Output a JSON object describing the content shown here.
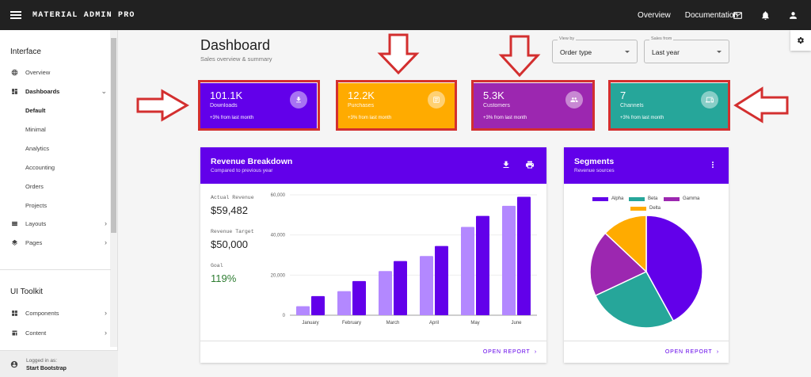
{
  "topbar": {
    "brand": "MATERIAL ADMIN PRO",
    "nav": [
      "Overview",
      "Documentation"
    ],
    "icons": [
      "mail-icon",
      "bell-icon",
      "account-icon"
    ]
  },
  "sidebar": {
    "interface_heading": "Interface",
    "overview": "Overview",
    "dashboards": "Dashboards",
    "dashboard_children": [
      "Default",
      "Minimal",
      "Analytics",
      "Accounting",
      "Orders",
      "Projects"
    ],
    "layouts": "Layouts",
    "pages": "Pages",
    "toolkit_heading": "UI Toolkit",
    "components": "Components",
    "content": "Content",
    "footer_line1": "Logged in as:",
    "footer_line2": "Start Bootstrap"
  },
  "header": {
    "title": "Dashboard",
    "subtitle": "Sales overview & summary",
    "view_by_label": "View by",
    "view_by_value": "Order type",
    "sales_from_label": "Sales from",
    "sales_from_value": "Last year"
  },
  "stats": [
    {
      "value": "101.1K",
      "label": "Downloads",
      "change": "+3%  from last month",
      "color": "#6200ea",
      "icon": "download-icon"
    },
    {
      "value": "12.2K",
      "label": "Purchases",
      "change": "+3%  from last month",
      "color": "#ffab00",
      "icon": "purchase-icon"
    },
    {
      "value": "5.3K",
      "label": "Customers",
      "change": "+3%  from last month",
      "color": "#9c27b0",
      "icon": "people-icon"
    },
    {
      "value": "7",
      "label": "Channels",
      "change": "+3%  from last month",
      "color": "#26a69a",
      "icon": "devices-icon"
    }
  ],
  "revenue": {
    "title": "Revenue Breakdown",
    "subtitle": "Compared to previous year",
    "actual_label": "Actual Revenue",
    "actual_value": "$59,482",
    "target_label": "Revenue Target",
    "target_value": "$50,000",
    "goal_label": "Goal",
    "goal_value": "119%",
    "footer_link": "OPEN REPORT"
  },
  "segments": {
    "title": "Segments",
    "subtitle": "Revenue sources",
    "footer_link": "OPEN REPORT"
  },
  "chart_data": [
    {
      "type": "bar",
      "categories": [
        "January",
        "February",
        "March",
        "April",
        "May",
        "June"
      ],
      "series": [
        {
          "values": [
            4500,
            12000,
            22000,
            29500,
            44000,
            54500
          ],
          "color": "#b388ff"
        },
        {
          "values": [
            9500,
            17000,
            27000,
            34500,
            49500,
            59000
          ],
          "color": "#6200ea"
        }
      ],
      "yticks": [
        "0",
        "20,000",
        "40,000",
        "60,000"
      ],
      "ylim": [
        0,
        60000
      ]
    },
    {
      "type": "pie",
      "labels": [
        "Alpha",
        "Beta",
        "Gamma",
        "Delta"
      ],
      "values": [
        42,
        26,
        19,
        13
      ],
      "colors": [
        "#6200ea",
        "#26a69a",
        "#9c27b0",
        "#ffab00"
      ],
      "legend": "top"
    }
  ]
}
